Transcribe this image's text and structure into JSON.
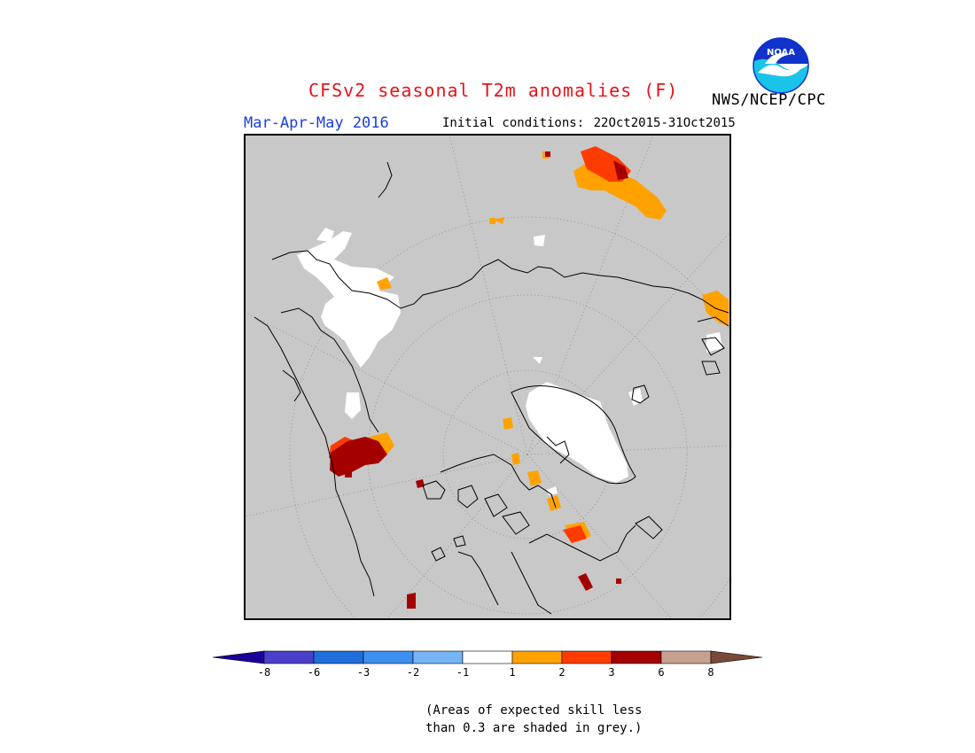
{
  "header": {
    "title": "CFSv2 seasonal T2m anomalies (F)",
    "season": "Mar-Apr-May 2016",
    "initial_conditions_label": "Initial conditions:",
    "initial_conditions_value": "22Oct2015-31Oct2015",
    "agency": "NWS/NCEP/CPC",
    "logo_text": "NOAA"
  },
  "legend": {
    "colors": [
      "#1a0099",
      "#4a3fc8",
      "#1f6ed9",
      "#3d8ff0",
      "#75b4f5",
      "#ffffff",
      "#ffa200",
      "#ff3c00",
      "#a50000",
      "#c8a090",
      "#7a4a38"
    ],
    "ticks": [
      "-8",
      "-6",
      "-3",
      "-2",
      "-1",
      "1",
      "2",
      "3",
      "6",
      "8"
    ]
  },
  "map": {
    "background": "#c8c8c8",
    "projection": "north-polar-stereographic"
  },
  "footnote": {
    "line1": "(Areas of expected skill less",
    "line2": "than 0.3 are shaded in grey.)"
  }
}
